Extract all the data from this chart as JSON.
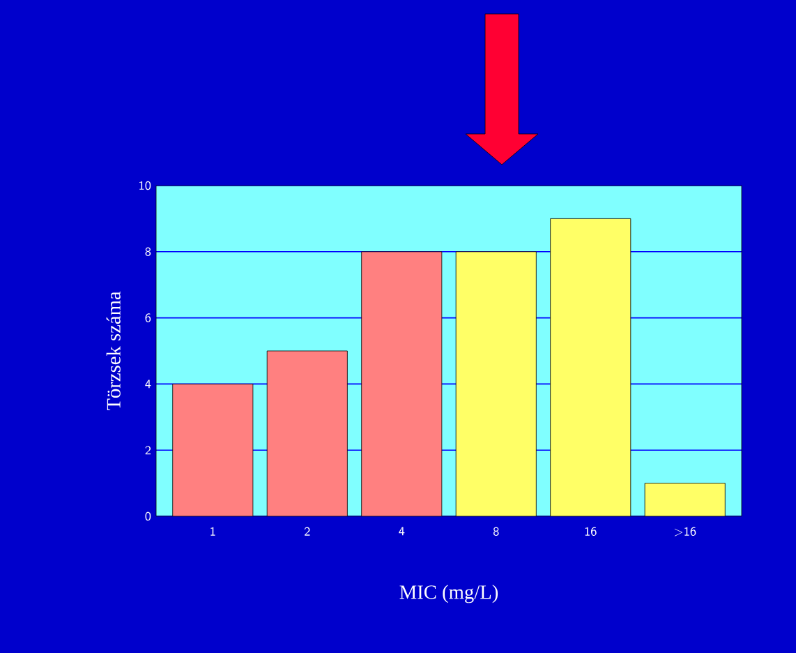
{
  "chart_data": {
    "type": "bar",
    "xlabel": "MIC (mg/L)",
    "ylabel": "Törzsek száma",
    "categories": [
      "1",
      "2",
      "4",
      "8",
      "16",
      ">16"
    ],
    "values": [
      4,
      5,
      8,
      8,
      9,
      1
    ],
    "colors": [
      "#ff8080",
      "#ff8080",
      "#ff8080",
      "#ffff66",
      "#ffff66",
      "#ffff66"
    ],
    "ylim": [
      0,
      10
    ],
    "yticks": [
      0,
      2,
      4,
      6,
      8,
      10
    ],
    "grid": "y"
  }
}
